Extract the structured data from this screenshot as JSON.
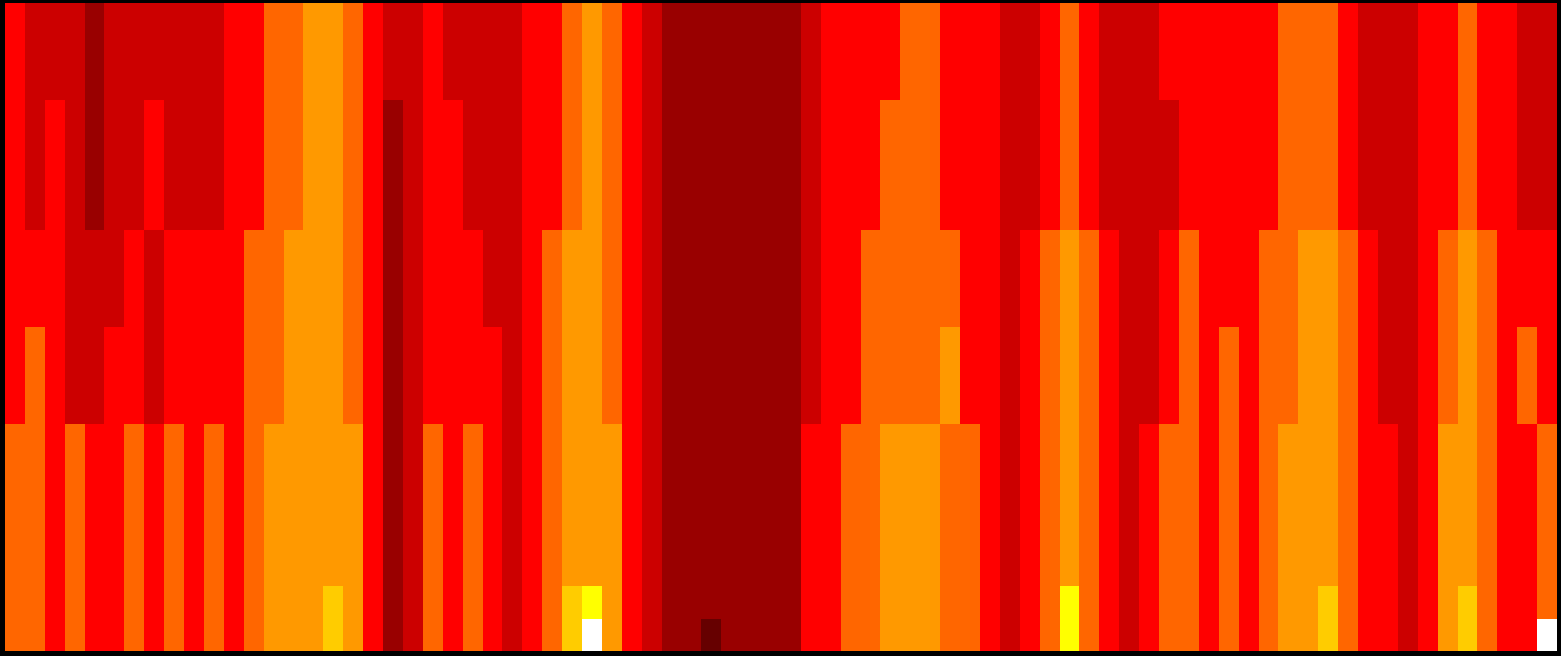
{
  "chart_data": {
    "type": "heatmap",
    "cells": [
      [
        3,
        2,
        2,
        2,
        1,
        2,
        2,
        2,
        2,
        2,
        2,
        3,
        3,
        4,
        4,
        5,
        5,
        4,
        3,
        2,
        2,
        3,
        2,
        2,
        2,
        2,
        3,
        3,
        4,
        5,
        4,
        3,
        2,
        1,
        1,
        1,
        1,
        1,
        1,
        1,
        2,
        3,
        3,
        3,
        3,
        4,
        4,
        3,
        3,
        3,
        2,
        2,
        3,
        4,
        3,
        2,
        2,
        2,
        3,
        3,
        3,
        3,
        3,
        3,
        4,
        4,
        4,
        3,
        2,
        2,
        2,
        3,
        3,
        4,
        3,
        3,
        2,
        2
      ],
      [
        3,
        2,
        2,
        2,
        1,
        2,
        2,
        2,
        2,
        2,
        2,
        3,
        3,
        4,
        4,
        5,
        5,
        4,
        3,
        2,
        2,
        3,
        2,
        2,
        2,
        2,
        3,
        3,
        4,
        5,
        4,
        3,
        2,
        1,
        1,
        1,
        1,
        1,
        1,
        1,
        2,
        3,
        3,
        3,
        3,
        4,
        4,
        3,
        3,
        3,
        2,
        2,
        3,
        4,
        3,
        2,
        2,
        2,
        3,
        3,
        3,
        3,
        3,
        3,
        4,
        4,
        4,
        3,
        2,
        2,
        2,
        3,
        3,
        4,
        3,
        3,
        2,
        2
      ],
      [
        3,
        2,
        2,
        2,
        1,
        2,
        2,
        2,
        2,
        2,
        2,
        3,
        3,
        4,
        4,
        5,
        5,
        4,
        3,
        2,
        2,
        3,
        2,
        2,
        2,
        2,
        3,
        3,
        4,
        5,
        4,
        3,
        2,
        1,
        1,
        1,
        1,
        1,
        1,
        1,
        2,
        3,
        3,
        3,
        3,
        4,
        4,
        3,
        3,
        3,
        2,
        2,
        3,
        4,
        3,
        2,
        2,
        2,
        3,
        3,
        3,
        3,
        3,
        3,
        4,
        4,
        4,
        3,
        2,
        2,
        2,
        3,
        3,
        4,
        3,
        3,
        2,
        2
      ],
      [
        3,
        2,
        3,
        2,
        1,
        2,
        2,
        3,
        2,
        2,
        2,
        3,
        3,
        4,
        4,
        5,
        5,
        4,
        3,
        1,
        2,
        3,
        3,
        2,
        2,
        2,
        3,
        3,
        4,
        5,
        4,
        3,
        2,
        1,
        1,
        1,
        1,
        1,
        1,
        1,
        2,
        3,
        3,
        3,
        4,
        4,
        4,
        3,
        3,
        3,
        2,
        2,
        3,
        4,
        3,
        2,
        2,
        2,
        2,
        3,
        3,
        3,
        3,
        3,
        4,
        4,
        4,
        3,
        2,
        2,
        2,
        3,
        3,
        4,
        3,
        3,
        2,
        2
      ],
      [
        3,
        2,
        3,
        2,
        1,
        2,
        2,
        3,
        2,
        2,
        2,
        3,
        3,
        4,
        4,
        5,
        5,
        4,
        3,
        1,
        2,
        3,
        3,
        2,
        2,
        2,
        3,
        3,
        4,
        5,
        4,
        3,
        2,
        1,
        1,
        1,
        1,
        1,
        1,
        1,
        2,
        3,
        3,
        3,
        4,
        4,
        4,
        3,
        3,
        3,
        2,
        2,
        3,
        4,
        3,
        2,
        2,
        2,
        2,
        3,
        3,
        3,
        3,
        3,
        4,
        4,
        4,
        3,
        2,
        2,
        2,
        3,
        3,
        4,
        3,
        3,
        2,
        2
      ],
      [
        3,
        2,
        3,
        2,
        1,
        2,
        2,
        3,
        2,
        2,
        2,
        3,
        3,
        4,
        4,
        5,
        5,
        4,
        3,
        1,
        2,
        3,
        3,
        2,
        2,
        2,
        3,
        3,
        4,
        5,
        4,
        3,
        2,
        1,
        1,
        1,
        1,
        1,
        1,
        1,
        2,
        3,
        3,
        3,
        4,
        4,
        4,
        3,
        3,
        3,
        2,
        2,
        3,
        4,
        3,
        2,
        2,
        2,
        2,
        3,
        3,
        3,
        3,
        3,
        4,
        4,
        4,
        3,
        2,
        2,
        2,
        3,
        3,
        4,
        3,
        3,
        2,
        2
      ],
      [
        3,
        2,
        3,
        2,
        1,
        2,
        2,
        3,
        2,
        2,
        2,
        3,
        3,
        4,
        4,
        5,
        5,
        4,
        3,
        1,
        2,
        3,
        3,
        2,
        2,
        2,
        3,
        3,
        4,
        5,
        4,
        3,
        2,
        1,
        1,
        1,
        1,
        1,
        1,
        1,
        2,
        3,
        3,
        3,
        4,
        4,
        4,
        3,
        3,
        3,
        2,
        2,
        3,
        4,
        3,
        2,
        2,
        2,
        2,
        3,
        3,
        3,
        3,
        3,
        4,
        4,
        4,
        3,
        2,
        2,
        2,
        3,
        3,
        4,
        3,
        3,
        2,
        2
      ],
      [
        3,
        3,
        3,
        2,
        2,
        2,
        3,
        2,
        3,
        3,
        3,
        3,
        4,
        4,
        5,
        5,
        5,
        4,
        3,
        1,
        2,
        3,
        3,
        3,
        2,
        2,
        3,
        4,
        5,
        5,
        4,
        3,
        2,
        1,
        1,
        1,
        1,
        1,
        1,
        1,
        2,
        3,
        3,
        4,
        4,
        4,
        4,
        4,
        3,
        3,
        2,
        3,
        4,
        5,
        4,
        3,
        2,
        2,
        3,
        4,
        3,
        3,
        3,
        4,
        4,
        5,
        5,
        4,
        3,
        2,
        2,
        3,
        4,
        5,
        4,
        3,
        3,
        3
      ],
      [
        3,
        3,
        3,
        2,
        2,
        2,
        3,
        2,
        3,
        3,
        3,
        3,
        4,
        4,
        5,
        5,
        5,
        4,
        3,
        1,
        2,
        3,
        3,
        3,
        2,
        2,
        3,
        4,
        5,
        5,
        4,
        3,
        2,
        1,
        1,
        1,
        1,
        1,
        1,
        1,
        2,
        3,
        3,
        4,
        4,
        4,
        4,
        4,
        3,
        3,
        2,
        3,
        4,
        5,
        4,
        3,
        2,
        2,
        3,
        4,
        3,
        3,
        3,
        4,
        4,
        5,
        5,
        4,
        3,
        2,
        2,
        3,
        4,
        5,
        4,
        3,
        3,
        3
      ],
      [
        3,
        3,
        3,
        2,
        2,
        2,
        3,
        2,
        3,
        3,
        3,
        3,
        4,
        4,
        5,
        5,
        5,
        4,
        3,
        1,
        2,
        3,
        3,
        3,
        2,
        2,
        3,
        4,
        5,
        5,
        4,
        3,
        2,
        1,
        1,
        1,
        1,
        1,
        1,
        1,
        2,
        3,
        3,
        4,
        4,
        4,
        4,
        4,
        3,
        3,
        2,
        3,
        4,
        5,
        4,
        3,
        2,
        2,
        3,
        4,
        3,
        3,
        3,
        4,
        4,
        5,
        5,
        4,
        3,
        2,
        2,
        3,
        4,
        5,
        4,
        3,
        3,
        3
      ],
      [
        3,
        4,
        3,
        2,
        2,
        3,
        3,
        2,
        3,
        3,
        3,
        3,
        4,
        4,
        5,
        5,
        5,
        4,
        3,
        1,
        2,
        3,
        3,
        3,
        3,
        2,
        3,
        4,
        5,
        5,
        4,
        3,
        2,
        1,
        1,
        1,
        1,
        1,
        1,
        1,
        2,
        3,
        3,
        4,
        4,
        4,
        4,
        5,
        3,
        3,
        2,
        3,
        4,
        5,
        4,
        3,
        2,
        2,
        3,
        4,
        3,
        4,
        3,
        4,
        4,
        5,
        5,
        4,
        3,
        2,
        2,
        3,
        4,
        5,
        4,
        3,
        4,
        3
      ],
      [
        3,
        4,
        3,
        2,
        2,
        3,
        3,
        2,
        3,
        3,
        3,
        3,
        4,
        4,
        5,
        5,
        5,
        4,
        3,
        1,
        2,
        3,
        3,
        3,
        3,
        2,
        3,
        4,
        5,
        5,
        4,
        3,
        2,
        1,
        1,
        1,
        1,
        1,
        1,
        1,
        2,
        3,
        3,
        4,
        4,
        4,
        4,
        5,
        3,
        3,
        2,
        3,
        4,
        5,
        4,
        3,
        2,
        2,
        3,
        4,
        3,
        4,
        3,
        4,
        4,
        5,
        5,
        4,
        3,
        2,
        2,
        3,
        4,
        5,
        4,
        3,
        4,
        3
      ],
      [
        3,
        4,
        3,
        2,
        2,
        3,
        3,
        2,
        3,
        3,
        3,
        3,
        4,
        4,
        5,
        5,
        5,
        4,
        3,
        1,
        2,
        3,
        3,
        3,
        3,
        2,
        3,
        4,
        5,
        5,
        4,
        3,
        2,
        1,
        1,
        1,
        1,
        1,
        1,
        1,
        2,
        3,
        3,
        4,
        4,
        4,
        4,
        5,
        3,
        3,
        2,
        3,
        4,
        5,
        4,
        3,
        2,
        2,
        3,
        4,
        3,
        4,
        3,
        4,
        4,
        5,
        5,
        4,
        3,
        2,
        2,
        3,
        4,
        5,
        4,
        3,
        4,
        3
      ],
      [
        4,
        4,
        3,
        4,
        3,
        3,
        4,
        3,
        4,
        3,
        4,
        3,
        4,
        5,
        5,
        5,
        5,
        5,
        3,
        1,
        2,
        4,
        3,
        4,
        3,
        2,
        3,
        4,
        5,
        5,
        5,
        3,
        2,
        1,
        1,
        1,
        1,
        1,
        1,
        1,
        3,
        3,
        4,
        4,
        5,
        5,
        5,
        4,
        4,
        3,
        2,
        3,
        4,
        5,
        4,
        3,
        2,
        3,
        4,
        4,
        3,
        4,
        3,
        4,
        5,
        5,
        5,
        4,
        3,
        3,
        2,
        3,
        5,
        5,
        4,
        3,
        3,
        4
      ],
      [
        4,
        4,
        3,
        4,
        3,
        3,
        4,
        3,
        4,
        3,
        4,
        3,
        4,
        5,
        5,
        5,
        5,
        5,
        3,
        1,
        2,
        4,
        3,
        4,
        3,
        2,
        3,
        4,
        5,
        5,
        5,
        3,
        2,
        1,
        1,
        1,
        1,
        1,
        1,
        1,
        3,
        3,
        4,
        4,
        5,
        5,
        5,
        4,
        4,
        3,
        2,
        3,
        4,
        5,
        4,
        3,
        2,
        3,
        4,
        4,
        3,
        4,
        3,
        4,
        5,
        5,
        5,
        4,
        3,
        3,
        2,
        3,
        5,
        5,
        4,
        3,
        3,
        4
      ],
      [
        4,
        4,
        3,
        4,
        3,
        3,
        4,
        3,
        4,
        3,
        4,
        3,
        4,
        5,
        5,
        5,
        5,
        5,
        3,
        1,
        2,
        4,
        3,
        4,
        3,
        2,
        3,
        4,
        5,
        5,
        5,
        3,
        2,
        1,
        1,
        1,
        1,
        1,
        1,
        1,
        3,
        3,
        4,
        4,
        5,
        5,
        5,
        4,
        4,
        3,
        2,
        3,
        4,
        5,
        4,
        3,
        2,
        3,
        4,
        4,
        3,
        4,
        3,
        4,
        5,
        5,
        5,
        4,
        3,
        3,
        2,
        3,
        5,
        5,
        4,
        3,
        3,
        4
      ],
      [
        4,
        4,
        3,
        4,
        3,
        3,
        4,
        3,
        4,
        3,
        4,
        3,
        4,
        5,
        5,
        5,
        5,
        5,
        3,
        1,
        2,
        4,
        3,
        4,
        3,
        2,
        3,
        4,
        5,
        5,
        5,
        3,
        2,
        1,
        1,
        1,
        1,
        1,
        1,
        1,
        3,
        3,
        4,
        4,
        5,
        5,
        5,
        4,
        4,
        3,
        2,
        3,
        4,
        5,
        4,
        3,
        2,
        3,
        4,
        4,
        3,
        4,
        3,
        4,
        5,
        5,
        5,
        4,
        3,
        3,
        2,
        3,
        5,
        5,
        4,
        3,
        3,
        4
      ],
      [
        4,
        4,
        3,
        4,
        3,
        3,
        4,
        3,
        4,
        3,
        4,
        3,
        4,
        5,
        5,
        5,
        5,
        5,
        3,
        1,
        2,
        4,
        3,
        4,
        3,
        2,
        3,
        4,
        5,
        5,
        5,
        3,
        2,
        1,
        1,
        1,
        1,
        1,
        1,
        1,
        3,
        3,
        4,
        4,
        5,
        5,
        5,
        4,
        4,
        3,
        2,
        3,
        4,
        5,
        4,
        3,
        2,
        3,
        4,
        4,
        3,
        4,
        3,
        4,
        5,
        5,
        5,
        4,
        3,
        3,
        2,
        3,
        5,
        5,
        4,
        3,
        3,
        4
      ],
      [
        4,
        4,
        3,
        4,
        3,
        3,
        4,
        3,
        4,
        3,
        4,
        3,
        4,
        5,
        5,
        5,
        6,
        5,
        3,
        1,
        2,
        4,
        3,
        4,
        3,
        2,
        3,
        4,
        6,
        7,
        5,
        3,
        2,
        1,
        1,
        1,
        1,
        1,
        1,
        1,
        3,
        3,
        4,
        4,
        5,
        5,
        5,
        4,
        4,
        3,
        2,
        3,
        4,
        7,
        4,
        3,
        2,
        3,
        4,
        4,
        3,
        4,
        3,
        4,
        5,
        5,
        6,
        4,
        3,
        3,
        2,
        3,
        5,
        6,
        4,
        3,
        3,
        4
      ],
      [
        4,
        4,
        3,
        4,
        3,
        3,
        4,
        3,
        4,
        3,
        4,
        3,
        4,
        5,
        5,
        5,
        6,
        5,
        3,
        1,
        2,
        4,
        3,
        4,
        3,
        2,
        3,
        4,
        6,
        8,
        5,
        3,
        2,
        1,
        1,
        0,
        1,
        1,
        1,
        1,
        3,
        3,
        4,
        4,
        5,
        5,
        5,
        4,
        4,
        3,
        2,
        3,
        4,
        7,
        4,
        3,
        2,
        3,
        4,
        4,
        3,
        4,
        3,
        4,
        5,
        5,
        6,
        4,
        3,
        3,
        2,
        3,
        5,
        6,
        4,
        3,
        3,
        8
      ]
    ],
    "zlim": [
      0,
      8
    ],
    "colors": [
      "#660000",
      "#990000",
      "#cc0000",
      "#ff0000",
      "#ff6600",
      "#ff9900",
      "#ffcc00",
      "#ffff00",
      "#ffffff"
    ],
    "tick_labels": false
  }
}
